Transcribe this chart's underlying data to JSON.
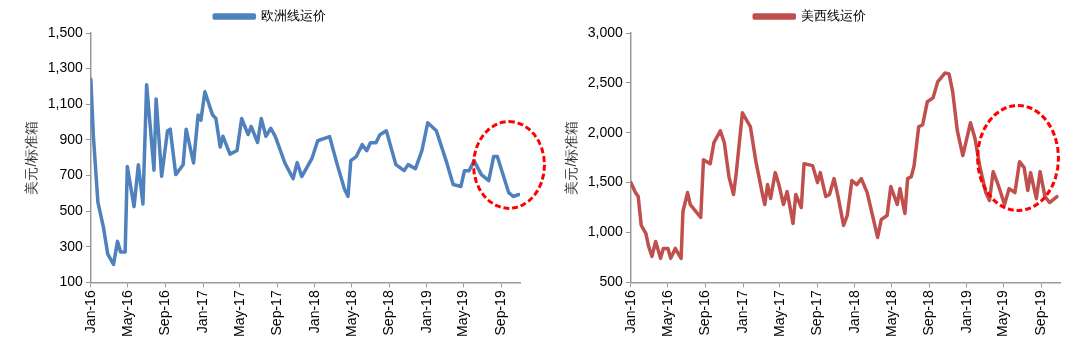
{
  "chart_data": [
    {
      "type": "line",
      "ylabel": "美元/标准箱",
      "legend": "top",
      "grid": false,
      "marker": "none",
      "line_style": "solid",
      "ylim": [
        100,
        1500
      ],
      "yticks": [
        {
          "value": 100,
          "label": "100"
        },
        {
          "value": 300,
          "label": "300"
        },
        {
          "value": 500,
          "label": "500"
        },
        {
          "value": 700,
          "label": "700"
        },
        {
          "value": 900,
          "label": "900"
        },
        {
          "value": 1100,
          "label": "1,100"
        },
        {
          "value": 1300,
          "label": "1,300"
        },
        {
          "value": 1500,
          "label": "1,500"
        }
      ],
      "xlim": [
        "2016-01-01",
        "2019-11-01"
      ],
      "xticks": [
        {
          "value": "2016-01-01",
          "label": "Jan-16"
        },
        {
          "value": "2016-05-01",
          "label": "May-16"
        },
        {
          "value": "2016-09-01",
          "label": "Sep-16"
        },
        {
          "value": "2017-01-01",
          "label": "Jan-17"
        },
        {
          "value": "2017-05-01",
          "label": "May-17"
        },
        {
          "value": "2017-09-01",
          "label": "Sep-17"
        },
        {
          "value": "2018-01-01",
          "label": "Jan-18"
        },
        {
          "value": "2018-05-01",
          "label": "May-18"
        },
        {
          "value": "2018-09-01",
          "label": "Sep-18"
        },
        {
          "value": "2019-01-01",
          "label": "Jan-19"
        },
        {
          "value": "2019-05-01",
          "label": "May-19"
        },
        {
          "value": "2019-09-01",
          "label": "Sep-19"
        }
      ],
      "series": [
        {
          "name": "欧洲线运价",
          "color": "#4f81bd",
          "x": [
            "2016-01-01",
            "2016-01-09",
            "2016-01-24",
            "2016-02-11",
            "2016-02-25",
            "2016-03-15",
            "2016-03-28",
            "2016-04-07",
            "2016-04-22",
            "2016-04-29",
            "2016-05-21",
            "2016-06-04",
            "2016-06-19",
            "2016-07-01",
            "2016-07-25",
            "2016-08-01",
            "2016-08-19",
            "2016-09-07",
            "2016-09-16",
            "2016-10-04",
            "2016-10-28",
            "2016-11-07",
            "2016-12-01",
            "2016-12-16",
            "2016-12-25",
            "2017-01-07",
            "2017-02-01",
            "2017-02-12",
            "2017-02-26",
            "2017-03-07",
            "2017-03-30",
            "2017-04-22",
            "2017-05-07",
            "2017-05-28",
            "2017-06-07",
            "2017-06-28",
            "2017-07-10",
            "2017-07-25",
            "2017-08-10",
            "2017-08-25",
            "2017-09-25",
            "2017-10-22",
            "2017-11-04",
            "2017-11-19",
            "2017-12-22",
            "2018-01-10",
            "2018-02-18",
            "2018-03-13",
            "2018-04-07",
            "2018-04-19",
            "2018-04-28",
            "2018-05-16",
            "2018-06-04",
            "2018-06-19",
            "2018-07-01",
            "2018-07-19",
            "2018-08-01",
            "2018-08-22",
            "2018-09-22",
            "2018-10-19",
            "2018-11-01",
            "2018-11-25",
            "2018-12-16",
            "2019-01-04",
            "2019-02-01",
            "2019-03-07",
            "2019-03-28",
            "2019-04-22",
            "2019-05-04",
            "2019-05-19",
            "2019-06-04",
            "2019-06-28",
            "2019-07-22",
            "2019-08-07",
            "2019-08-19",
            "2019-09-25",
            "2019-10-10",
            "2019-10-28"
          ],
          "values": [
            1240,
            930,
            550,
            410,
            260,
            200,
            330,
            270,
            270,
            750,
            525,
            760,
            540,
            1210,
            730,
            1130,
            695,
            950,
            960,
            705,
            760,
            960,
            770,
            1040,
            1010,
            1170,
            1040,
            1020,
            860,
            920,
            820,
            840,
            1020,
            930,
            975,
            885,
            1020,
            920,
            965,
            918,
            770,
            682,
            772,
            694,
            794,
            895,
            918,
            772,
            626,
            582,
            783,
            806,
            873,
            839,
            884,
            884,
            929,
            951,
            761,
            727,
            761,
            738,
            839,
            996,
            951,
            772,
            649,
            638,
            727,
            727,
            783,
            705,
            671,
            806,
            806,
            604,
            582,
            593
          ]
        }
      ]
    },
    {
      "type": "line",
      "ylabel": "美元/标准箱",
      "legend": "top",
      "grid": false,
      "marker": "none",
      "line_style": "solid",
      "ylim": [
        500,
        3000
      ],
      "yticks": [
        {
          "value": 500,
          "label": "500"
        },
        {
          "value": 1000,
          "label": "1,000"
        },
        {
          "value": 1500,
          "label": "1,500"
        },
        {
          "value": 2000,
          "label": "2,000"
        },
        {
          "value": 2500,
          "label": "2,500"
        },
        {
          "value": 3000,
          "label": "3,000"
        }
      ],
      "xlim": [
        "2016-01-01",
        "2019-11-01"
      ],
      "xticks": [
        {
          "value": "2016-01-01",
          "label": "Jan-16"
        },
        {
          "value": "2016-05-01",
          "label": "May-16"
        },
        {
          "value": "2016-09-01",
          "label": "Sep-16"
        },
        {
          "value": "2017-01-01",
          "label": "Jan-17"
        },
        {
          "value": "2017-05-01",
          "label": "May-17"
        },
        {
          "value": "2017-09-01",
          "label": "Sep-17"
        },
        {
          "value": "2018-01-01",
          "label": "Jan-18"
        },
        {
          "value": "2018-05-01",
          "label": "May-18"
        },
        {
          "value": "2018-09-01",
          "label": "Sep-18"
        },
        {
          "value": "2019-01-01",
          "label": "Jan-19"
        },
        {
          "value": "2019-05-01",
          "label": "May-19"
        },
        {
          "value": "2019-09-01",
          "label": "Sep-19"
        }
      ],
      "series": [
        {
          "name": "美西线运价",
          "color": "#c0504d",
          "x": [
            "2016-01-01",
            "2016-01-16",
            "2016-01-25",
            "2016-02-04",
            "2016-02-19",
            "2016-02-28",
            "2016-03-10",
            "2016-03-22",
            "2016-04-07",
            "2016-04-16",
            "2016-05-01",
            "2016-05-10",
            "2016-05-25",
            "2016-06-13",
            "2016-06-19",
            "2016-07-04",
            "2016-07-13",
            "2016-08-16",
            "2016-08-25",
            "2016-09-16",
            "2016-09-28",
            "2016-10-19",
            "2016-11-01",
            "2016-11-16",
            "2016-12-01",
            "2016-12-10",
            "2016-12-30",
            "2017-01-25",
            "2017-02-12",
            "2017-03-07",
            "2017-03-13",
            "2017-03-22",
            "2017-04-01",
            "2017-04-16",
            "2017-04-28",
            "2017-05-13",
            "2017-05-25",
            "2017-06-13",
            "2017-06-22",
            "2017-07-10",
            "2017-07-19",
            "2017-08-16",
            "2017-09-01",
            "2017-09-10",
            "2017-09-28",
            "2017-10-10",
            "2017-10-25",
            "2017-11-07",
            "2017-11-25",
            "2017-12-07",
            "2017-12-22",
            "2018-01-07",
            "2018-01-22",
            "2018-02-10",
            "2018-03-01",
            "2018-03-16",
            "2018-03-28",
            "2018-04-16",
            "2018-04-28",
            "2018-05-19",
            "2018-05-28",
            "2018-06-13",
            "2018-06-22",
            "2018-07-04",
            "2018-07-13",
            "2018-07-28",
            "2018-08-10",
            "2018-08-25",
            "2018-09-13",
            "2018-09-28",
            "2018-10-22",
            "2018-11-04",
            "2018-11-16",
            "2018-12-01",
            "2018-12-19",
            "2018-12-28",
            "2019-01-13",
            "2019-01-28",
            "2019-02-12",
            "2019-03-04",
            "2019-03-16",
            "2019-03-28",
            "2019-04-13",
            "2019-05-04",
            "2019-05-19",
            "2019-06-07",
            "2019-06-22",
            "2019-07-07",
            "2019-07-19",
            "2019-07-28",
            "2019-08-16",
            "2019-08-28",
            "2019-09-13",
            "2019-09-28",
            "2019-10-22"
          ],
          "values": [
            1500,
            1400,
            1360,
            1070,
            990,
            860,
            760,
            910,
            740,
            840,
            840,
            740,
            840,
            740,
            1210,
            1400,
            1280,
            1150,
            1730,
            1690,
            1900,
            2020,
            1900,
            1560,
            1380,
            1600,
            2200,
            2060,
            1710,
            1360,
            1280,
            1480,
            1340,
            1600,
            1480,
            1280,
            1410,
            1090,
            1380,
            1250,
            1690,
            1670,
            1500,
            1600,
            1360,
            1380,
            1540,
            1360,
            1070,
            1170,
            1520,
            1480,
            1540,
            1400,
            1150,
            950,
            1130,
            1170,
            1460,
            1280,
            1440,
            1190,
            1540,
            1560,
            1670,
            2060,
            2080,
            2310,
            2350,
            2510,
            2600,
            2590,
            2410,
            2020,
            1770,
            1890,
            2100,
            1940,
            1670,
            1400,
            1320,
            1610,
            1480,
            1280,
            1440,
            1400,
            1710,
            1650,
            1420,
            1600,
            1340,
            1610,
            1360,
            1300,
            1360
          ]
        }
      ]
    }
  ]
}
